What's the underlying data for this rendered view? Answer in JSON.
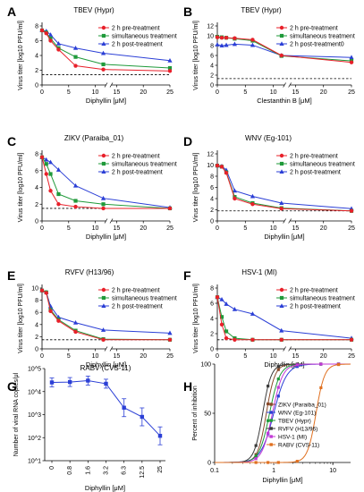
{
  "figure": {
    "series_names": [
      "2 h pre-treatment",
      "simultaneous treatment",
      "2 h post-treatment"
    ],
    "series_names_B": [
      "2 h pre-treatment",
      "simultaneous treatment",
      "2 h post-treatment0"
    ],
    "colors": {
      "pre": "#e8202a",
      "sim": "#1f9a3a",
      "post": "#2b3fd6",
      "mixed": "#8a4a2a"
    }
  },
  "chart_data": [
    {
      "panel": "A",
      "type": "line",
      "title": "TBEV (Hypr)",
      "xlabel": "Diphyllin [μM]",
      "ylabel": "Virus titer [log10 PFU/ml]",
      "x_ticks": [
        "0",
        "5",
        "10",
        "15",
        "20",
        "25"
      ],
      "y_ticks": [
        "0",
        "2",
        "4",
        "6",
        "8"
      ],
      "ylim": [
        0,
        8
      ],
      "xlim": [
        0,
        25
      ],
      "axis_break": [
        12,
        14
      ],
      "detection_limit": 1.4,
      "series": [
        {
          "name": "2 h pre-treatment",
          "x": [
            0,
            0.8,
            1.6,
            3.1,
            6.3,
            12.5,
            25
          ],
          "y": [
            7.4,
            7.0,
            6.0,
            4.8,
            2.6,
            2.1,
            1.9
          ]
        },
        {
          "name": "simultaneous treatment",
          "x": [
            0,
            0.8,
            1.6,
            3.1,
            6.3,
            12.5,
            25
          ],
          "y": [
            7.4,
            7.1,
            6.3,
            5.0,
            3.8,
            2.8,
            2.3
          ]
        },
        {
          "name": "2 h post-treatment",
          "x": [
            0,
            0.8,
            1.6,
            3.1,
            6.3,
            12.5,
            25
          ],
          "y": [
            7.4,
            7.3,
            6.8,
            5.6,
            5.0,
            4.3,
            3.3
          ]
        }
      ]
    },
    {
      "panel": "B",
      "type": "line",
      "title": "TBEV (Hypr)",
      "xlabel": "Clestanthin B [μM]",
      "ylabel": "Virus titer [log10 PFU/ml]",
      "x_ticks": [
        "0",
        "5",
        "10",
        "15",
        "20",
        "25"
      ],
      "y_ticks": [
        "0",
        "2",
        "4",
        "6",
        "8",
        "10",
        "12"
      ],
      "ylim": [
        0,
        12
      ],
      "xlim": [
        0,
        25
      ],
      "axis_break": [
        12,
        14
      ],
      "detection_limit": 1.3,
      "series": [
        {
          "name": "2 h pre-treatment",
          "x": [
            0,
            0.8,
            1.6,
            3.1,
            6.3,
            12.5,
            25
          ],
          "y": [
            9.7,
            9.6,
            9.6,
            9.5,
            9.2,
            6.0,
            4.6
          ]
        },
        {
          "name": "simultaneous treatment",
          "x": [
            0,
            0.8,
            1.6,
            3.1,
            6.3,
            12.5,
            25
          ],
          "y": [
            9.8,
            9.7,
            9.6,
            9.4,
            9.0,
            5.9,
            4.9
          ]
        },
        {
          "name": "2 h post-treatment0",
          "x": [
            0,
            0.8,
            1.6,
            3.1,
            6.3,
            12.5,
            25
          ],
          "y": [
            8.2,
            8.0,
            8.1,
            8.3,
            8.1,
            6.0,
            5.6
          ]
        }
      ]
    },
    {
      "panel": "C",
      "type": "line",
      "title": "ZIKV (Paraiba_01)",
      "xlabel": "Diphyllin [μM]",
      "ylabel": "Virus titer [log10 PFU/ml]",
      "x_ticks": [
        "0",
        "5",
        "10",
        "15",
        "20",
        "25"
      ],
      "y_ticks": [
        "0",
        "2",
        "4",
        "6",
        "8"
      ],
      "ylim": [
        0,
        8
      ],
      "xlim": [
        0,
        25
      ],
      "axis_break": [
        12,
        14
      ],
      "detection_limit": 1.5,
      "series": [
        {
          "name": "2 h pre-treatment",
          "x": [
            0,
            0.8,
            1.6,
            3.1,
            6.3,
            12.5,
            25
          ],
          "y": [
            7.6,
            5.6,
            3.6,
            2.0,
            1.7,
            1.5,
            1.5
          ]
        },
        {
          "name": "simultaneous treatment",
          "x": [
            0,
            0.8,
            1.6,
            3.1,
            6.3,
            12.5,
            25
          ],
          "y": [
            7.6,
            6.8,
            5.6,
            3.2,
            2.4,
            2.0,
            1.5
          ]
        },
        {
          "name": "2 h post-treatment",
          "x": [
            0,
            0.8,
            1.6,
            3.1,
            6.3,
            12.5,
            25
          ],
          "y": [
            7.6,
            7.3,
            7.0,
            6.1,
            4.2,
            2.7,
            1.6
          ]
        }
      ]
    },
    {
      "panel": "D",
      "type": "line",
      "title": "WNV (Eg-101)",
      "xlabel": "Diphyllin [μM]",
      "ylabel": "Virus titer [log10 PFU/ml]",
      "x_ticks": [
        "0",
        "5",
        "10",
        "15",
        "20",
        "25"
      ],
      "y_ticks": [
        "0",
        "2",
        "4",
        "6",
        "8",
        "10",
        "12"
      ],
      "ylim": [
        0,
        12
      ],
      "xlim": [
        0,
        25
      ],
      "axis_break": [
        12,
        14
      ],
      "detection_limit": 1.8,
      "series": [
        {
          "name": "2 h pre-treatment",
          "x": [
            0,
            0.8,
            1.6,
            3.1,
            6.3,
            12.5,
            25
          ],
          "y": [
            9.9,
            9.7,
            8.6,
            4.0,
            3.0,
            2.2,
            1.8
          ]
        },
        {
          "name": "simultaneous treatment",
          "x": [
            0,
            0.8,
            1.6,
            3.1,
            6.3,
            12.5,
            25
          ],
          "y": [
            9.9,
            9.7,
            8.7,
            4.3,
            3.2,
            2.3,
            1.8
          ]
        },
        {
          "name": "2 h post-treatment",
          "x": [
            0,
            0.8,
            1.6,
            3.1,
            6.3,
            12.5,
            25
          ],
          "y": [
            9.9,
            9.8,
            9.1,
            5.4,
            4.4,
            3.2,
            2.2
          ]
        }
      ]
    },
    {
      "panel": "E",
      "type": "line",
      "title": "RVFV (H13/96)",
      "xlabel": "Diphyllin [μM]",
      "ylabel": "Virus titer [log10 PFU/ml]",
      "x_ticks": [
        "0",
        "5",
        "10",
        "15",
        "20",
        "25"
      ],
      "y_ticks": [
        "0",
        "2",
        "4",
        "6",
        "8",
        "10"
      ],
      "ylim": [
        0,
        10
      ],
      "xlim": [
        0,
        25
      ],
      "axis_break": [
        12,
        14
      ],
      "detection_limit": 1.5,
      "series": [
        {
          "name": "2 h pre-treatment",
          "x": [
            0,
            0.8,
            1.6,
            3.1,
            6.3,
            12.5,
            25
          ],
          "y": [
            9.6,
            9.2,
            6.2,
            4.6,
            2.8,
            1.5,
            1.5
          ]
        },
        {
          "name": "simultaneous treatment",
          "x": [
            0,
            0.8,
            1.6,
            3.1,
            6.3,
            12.5,
            25
          ],
          "y": [
            9.6,
            9.3,
            6.4,
            4.8,
            3.0,
            1.6,
            1.5
          ]
        },
        {
          "name": "2 h post-treatment",
          "x": [
            0,
            0.8,
            1.6,
            3.1,
            6.3,
            12.5,
            25
          ],
          "y": [
            9.6,
            9.3,
            7.0,
            5.2,
            4.3,
            3.1,
            2.6
          ]
        }
      ]
    },
    {
      "panel": "F",
      "type": "line",
      "title": "HSV-1 (MI)",
      "xlabel": "Diphyllin [μM]",
      "ylabel": "Virus titer [log10 PFU/ml]",
      "x_ticks": [
        "0",
        "5",
        "10",
        "15",
        "20",
        "25"
      ],
      "y_ticks": [
        "0",
        "2",
        "4",
        "6",
        "8"
      ],
      "ylim": [
        0,
        8
      ],
      "xlim": [
        0,
        25
      ],
      "axis_break": [
        12,
        14
      ],
      "detection_limit": 1.2,
      "series": [
        {
          "name": "2 h pre-treatment",
          "x": [
            0,
            0.8,
            1.6,
            3.1,
            6.3,
            12.5,
            25
          ],
          "y": [
            6.8,
            3.2,
            1.4,
            1.2,
            1.2,
            1.2,
            1.2
          ]
        },
        {
          "name": "simultaneous treatment",
          "x": [
            0,
            0.8,
            1.6,
            3.1,
            6.3,
            12.5,
            25
          ],
          "y": [
            6.8,
            4.2,
            2.3,
            1.4,
            1.2,
            1.2,
            1.2
          ]
        },
        {
          "name": "2 h post-treatment",
          "x": [
            0,
            0.8,
            1.6,
            3.1,
            6.3,
            12.5,
            25
          ],
          "y": [
            6.8,
            6.5,
            5.9,
            5.2,
            4.6,
            2.4,
            1.4
          ]
        }
      ]
    },
    {
      "panel": "G",
      "type": "line",
      "title": "RABV (CVS-11)",
      "xlabel": "Diphyllin [μM]",
      "ylabel": "Number of viral RNA copies/μl",
      "y_scale": "log",
      "ylim": [
        10,
        100000
      ],
      "y_ticks": [
        "10^1",
        "10^2",
        "10^3",
        "10^4",
        "10^5"
      ],
      "categories": [
        "0",
        "0.8",
        "1.6",
        "3.2",
        "6.3",
        "12.5",
        "25"
      ],
      "series": [
        {
          "name": "",
          "values": [
            25000,
            26000,
            30000,
            22000,
            2000,
            800,
            120
          ]
        }
      ]
    },
    {
      "panel": "H",
      "type": "line",
      "xlabel": "Diphyllin [μM]",
      "ylabel": "Percent of inhibition",
      "x_scale": "log",
      "xlim": [
        0.1,
        20
      ],
      "ylim": [
        0,
        100
      ],
      "x_ticks": [
        "0.1",
        "1",
        "10"
      ],
      "y_ticks": [
        "0",
        "50",
        "100"
      ],
      "series": [
        {
          "name": "ZIKV (Paraiba_01)",
          "color": "#8a4a2a",
          "ec50": 0.75,
          "hill": 6
        },
        {
          "name": "WNV (Eg-101)",
          "color": "#2b3fd6",
          "ec50": 1.0,
          "hill": 4
        },
        {
          "name": "TBEV (Hypr)",
          "color": "#1f9a3a",
          "ec50": 0.85,
          "hill": 5
        },
        {
          "name": "RVFV (H13/96)",
          "color": "#3a3a3a",
          "ec50": 0.65,
          "hill": 6
        },
        {
          "name": "HSV-1 (MI)",
          "color": "#c23ad6",
          "ec50": 0.95,
          "hill": 5
        },
        {
          "name": "RABV (CVS-11)",
          "color": "#e07020",
          "ec50": 5.2,
          "hill": 6
        }
      ]
    }
  ]
}
